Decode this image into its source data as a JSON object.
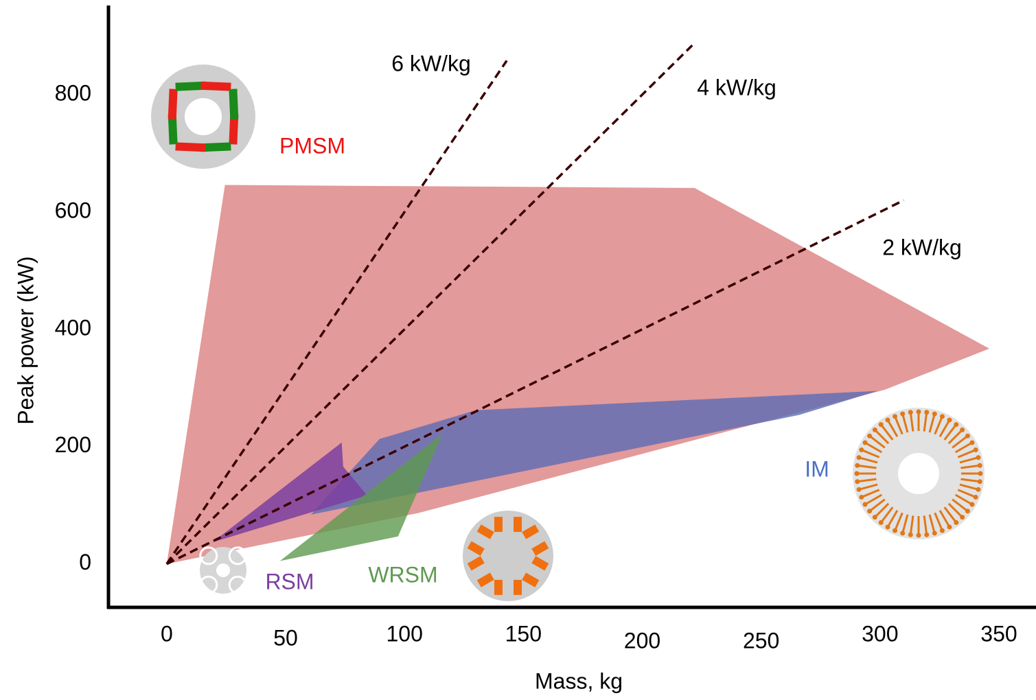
{
  "chart_data": {
    "type": "area",
    "x_label": "Mass, kg",
    "y_label": "Peak power (kW)",
    "xlim": [
      -24.5,
      365.6
    ],
    "ylim": [
      -74,
      952
    ],
    "xticks": [
      0,
      50,
      100,
      150,
      200,
      250,
      300,
      350
    ],
    "yticks": [
      0,
      200,
      400,
      600,
      800
    ],
    "grid": false,
    "series": [
      {
        "name": "PMSM",
        "color": "#e39a9a",
        "x": [
          0,
          24.5,
          222,
          346,
          302,
          106
        ],
        "values": [
          0,
          646,
          641,
          367,
          297,
          87
        ]
      },
      {
        "name": "IM",
        "color": "#5b6cb5",
        "x": [
          60.6,
          89.5,
          130,
          299,
          266
        ],
        "values": [
          84,
          213,
          262,
          295,
          254
        ]
      },
      {
        "name": "RSM",
        "color": "#7b3fa0",
        "x": [
          19.3,
          73.6,
          74.2,
          84.3
        ],
        "values": [
          37,
          207,
          166,
          117
        ]
      },
      {
        "name": "WRSM",
        "color": "#5e9a4f",
        "x": [
          47.6,
          116,
          97.3
        ],
        "values": [
          5,
          222,
          47
        ]
      }
    ],
    "lines": [
      {
        "name": "6 kW/kg",
        "color": "#3a0000",
        "x": [
          0,
          143
        ],
        "values": [
          0,
          858
        ]
      },
      {
        "name": "4 kW/kg",
        "color": "#3a0000",
        "x": [
          0,
          221
        ],
        "values": [
          0,
          884
        ]
      },
      {
        "name": "2 kW/kg",
        "color": "#3a0000",
        "x": [
          0,
          310
        ],
        "values": [
          0,
          620
        ]
      }
    ]
  }
}
